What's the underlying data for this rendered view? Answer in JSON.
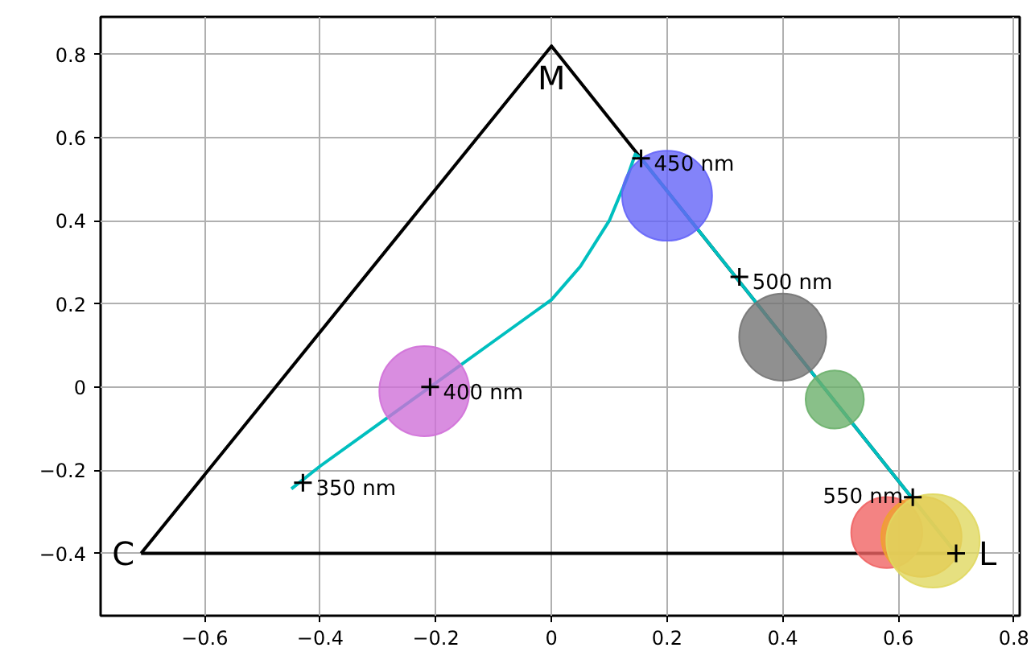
{
  "chart_data": {
    "type": "line",
    "xlim": [
      -0.78,
      0.81
    ],
    "ylim": [
      -0.55,
      0.89
    ],
    "xticks": [
      {
        "value": -0.6,
        "label": "−0.6"
      },
      {
        "value": -0.4,
        "label": "−0.4"
      },
      {
        "value": -0.2,
        "label": "−0.2"
      },
      0.0,
      0.2,
      0.4,
      0.6,
      0.8
    ],
    "yticks": [
      {
        "value": -0.4,
        "label": "−0.4"
      },
      {
        "value": -0.2,
        "label": "−0.2"
      },
      0.0,
      0.2,
      0.4,
      0.6,
      0.8
    ],
    "grid": true,
    "series": [
      {
        "color": "#000000",
        "x": [
          -0.71,
          0.0,
          0.7
        ],
        "values": [
          -0.4,
          0.82,
          -0.4
        ],
        "marker": "none"
      },
      {
        "color": "#000000",
        "x": [
          -0.71,
          0.7
        ],
        "values": [
          -0.4,
          -0.4
        ],
        "marker": "none"
      },
      {
        "color": "#00bfbf",
        "x": [
          -0.45,
          -0.4,
          -0.3,
          -0.21,
          -0.1,
          -0.04,
          0.0,
          0.05,
          0.1,
          0.13,
          0.145,
          0.155,
          0.7
        ],
        "values": [
          -0.245,
          -0.19,
          -0.09,
          0.0,
          0.11,
          0.17,
          0.21,
          0.29,
          0.4,
          0.5,
          0.56,
          0.55,
          -0.4
        ],
        "marker": "none"
      },
      {
        "type": "bubble",
        "x": [
          -0.22,
          0.2,
          0.4,
          0.49,
          0.58,
          0.64,
          0.66
        ],
        "values": [
          -0.01,
          0.46,
          0.12,
          -0.03,
          -0.35,
          -0.36,
          -0.37
        ],
        "sizes": [
          0.93,
          0.93,
          0.87,
          0.39,
          0.58,
          0.74,
          1
        ],
        "colors": [
          "#d070d8",
          "#6464f8",
          "#747474",
          "#6cb06c",
          "#f06464",
          "#f0a030",
          "#e0d860"
        ]
      },
      {
        "type": "scatter",
        "color": "#000000",
        "marker": "cross",
        "x": [
          -0.43,
          -0.21,
          0.155,
          0.325,
          0.625,
          0.7
        ],
        "values": [
          -0.23,
          0.0,
          0.55,
          0.265,
          -0.265,
          -0.4
        ]
      }
    ],
    "annotations": [
      {
        "text": "350 nm",
        "x": -0.43,
        "y": -0.23
      },
      {
        "text": "400 nm",
        "x": -0.21,
        "y": 0.0
      },
      {
        "text": "450 nm",
        "x": 0.155,
        "y": 0.55
      },
      {
        "text": "500 nm",
        "x": 0.325,
        "y": 0.265
      },
      {
        "text": "550 nm",
        "x": 0.625,
        "y": -0.265
      },
      {
        "text": "C",
        "x": -0.71,
        "y": -0.4
      },
      {
        "text": "M",
        "x": 0.0,
        "y": 0.82
      },
      {
        "text": "L",
        "x": 0.7,
        "y": -0.4
      }
    ]
  }
}
